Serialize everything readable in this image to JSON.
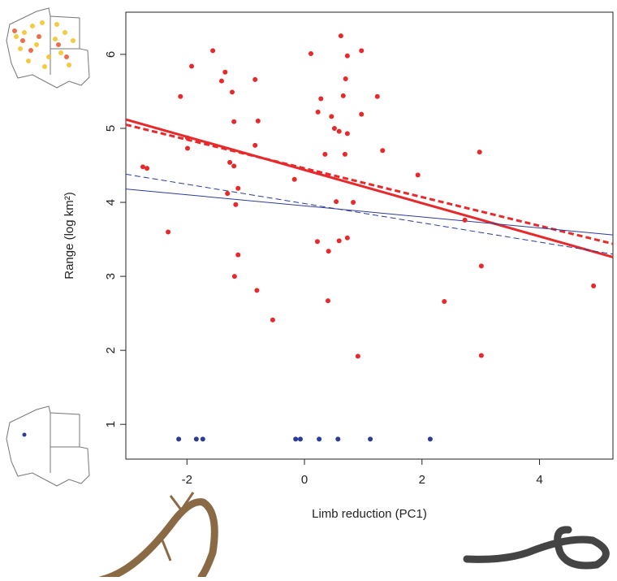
{
  "chart_data": {
    "type": "scatter",
    "xlabel": "Limb reduction (PC1)",
    "ylabel": "Range (log km²)",
    "xlim": [
      -3.04,
      5.25
    ],
    "ylim": [
      0.53,
      6.57
    ],
    "xticks": [
      -2,
      0,
      2,
      4
    ],
    "yticks": [
      1,
      2,
      3,
      4,
      5,
      6
    ],
    "series": [
      {
        "color": "#e8292c",
        "x": [
          -2.75,
          -2.68,
          -2.32,
          -2.11,
          -1.99,
          -1.99,
          -1.92,
          -1.56,
          -1.41,
          -1.35,
          -1.23,
          -1.2,
          -1.27,
          -1.2,
          -1.31,
          -1.13,
          -1.17,
          -1.13,
          -1.19,
          -0.84,
          -0.79,
          -0.84,
          -0.81,
          -0.54,
          -0.17,
          0.11,
          0.22,
          0.23,
          0.28,
          0.35,
          0.4,
          0.41,
          0.46,
          0.51,
          0.54,
          0.62,
          0.59,
          0.59,
          0.66,
          0.7,
          0.73,
          0.69,
          0.73,
          0.73,
          0.83,
          0.91,
          0.97,
          0.97,
          1.24,
          1.33,
          1.93,
          2.38,
          2.73,
          2.98,
          3.01,
          3.01,
          4.92
        ],
        "values": [
          4.48,
          4.46,
          3.6,
          5.43,
          4.87,
          4.73,
          5.84,
          6.05,
          5.64,
          5.76,
          5.49,
          5.09,
          4.54,
          4.49,
          4.12,
          4.19,
          3.97,
          3.29,
          3.0,
          5.66,
          5.1,
          4.77,
          2.81,
          2.41,
          4.31,
          6.01,
          3.47,
          5.22,
          5.4,
          4.65,
          2.67,
          3.34,
          5.16,
          5.0,
          4.01,
          6.25,
          4.96,
          3.48,
          5.44,
          5.67,
          5.98,
          4.65,
          4.93,
          3.52,
          4.0,
          1.92,
          6.05,
          5.19,
          5.43,
          4.7,
          4.37,
          2.66,
          3.76,
          4.68,
          3.14,
          1.93,
          2.87
        ]
      },
      {
        "color": "#2b3b97",
        "x": [
          -2.14,
          -1.84,
          -1.73,
          -0.15,
          -0.07,
          0.25,
          0.57,
          1.12,
          2.14
        ],
        "values": [
          0.8,
          0.8,
          0.8,
          0.8,
          0.8,
          0.8,
          0.8,
          0.8,
          0.8
        ]
      }
    ],
    "fits": [
      {
        "color": "#e8292c",
        "width": 3,
        "dashed": false,
        "x": [
          -3.04,
          5.25
        ],
        "values": [
          5.12,
          3.26
        ]
      },
      {
        "color": "#e8292c",
        "width": 3,
        "dashed": true,
        "x": [
          -3.04,
          5.25
        ],
        "values": [
          5.05,
          3.44
        ]
      },
      {
        "color": "#2b3b97",
        "width": 1,
        "dashed": false,
        "x": [
          -3.04,
          5.25
        ],
        "values": [
          4.18,
          3.56
        ]
      },
      {
        "color": "#2b3b97",
        "width": 1,
        "dashed": true,
        "x": [
          -3.04,
          5.25
        ],
        "values": [
          4.38,
          3.3
        ]
      }
    ]
  }
}
